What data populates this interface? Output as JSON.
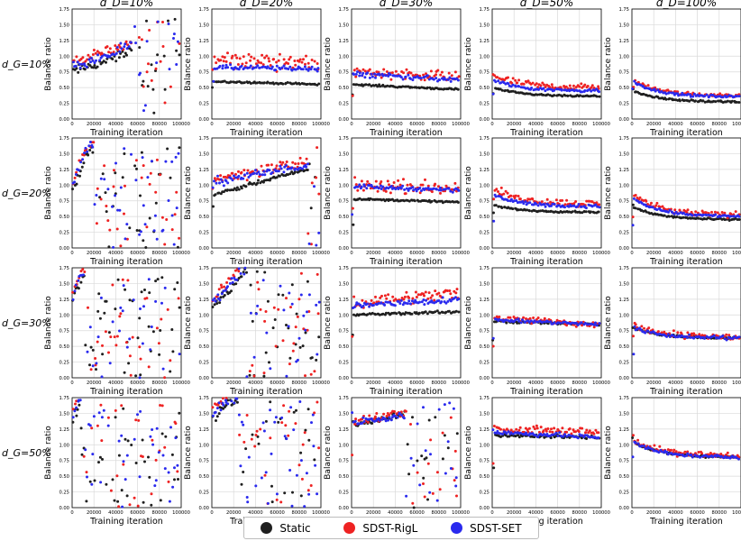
{
  "figure": {
    "col_titles": [
      "$d_D$=10%",
      "$d_D$=20%",
      "$d_D$=30%",
      "$d_D$=50%",
      "$d_D$=100%"
    ],
    "row_titles": [
      "$d_G$=10%",
      "$d_G$=20%",
      "$d_G$=30%",
      "$d_G$=50%"
    ],
    "col_title_text": [
      "d_D=10%",
      "d_D=20%",
      "d_D=30%",
      "d_D=50%",
      "d_D=100%"
    ],
    "row_title_text": [
      "d_G=10%",
      "d_G=20%",
      "d_G=30%",
      "d_G=50%"
    ],
    "xlabel": "Training iteration",
    "ylabel": "Balance ratio",
    "xlim": [
      0,
      100000
    ],
    "ylim": [
      0,
      1.75
    ],
    "xticks": [
      0,
      20000,
      40000,
      60000,
      80000,
      100000
    ],
    "yticks": [
      0.0,
      0.25,
      0.5,
      0.75,
      1.0,
      1.25,
      1.5,
      1.75
    ],
    "grid": true,
    "legend_placement": "bottom-center"
  },
  "legend": {
    "items": [
      {
        "label": "Static",
        "color": "#1f1f1f"
      },
      {
        "label": "SDST-RigL",
        "color": "#ee2222"
      },
      {
        "label": "SDST-SET",
        "color": "#2a2aee"
      }
    ]
  },
  "chart_data": {
    "type": "scatter",
    "series": [
      {
        "name": "Static",
        "color": "#1f1f1f"
      },
      {
        "name": "SDST-RigL",
        "color": "#ee2222"
      },
      {
        "name": "SDST-SET",
        "color": "#2a2aee"
      }
    ],
    "panels": [
      {
        "row": 0,
        "col": 0,
        "mode": "noisy",
        "trend": [
          0.75,
          0.85,
          0.95,
          1.1
        ],
        "chaos_after": 55000,
        "chaos_range": [
          0.05,
          1.6
        ]
      },
      {
        "row": 0,
        "col": 1,
        "mode": "stable",
        "levels": {
          "Static": [
            0.6,
            0.55
          ],
          "SDST-RigL": [
            0.95,
            0.9
          ],
          "SDST-SET": [
            0.82,
            0.8
          ]
        },
        "spread": {
          "Static": 0.02,
          "SDST-RigL": 0.2,
          "SDST-SET": 0.06
        }
      },
      {
        "row": 0,
        "col": 2,
        "mode": "stable",
        "levels": {
          "Static": [
            0.55,
            0.47
          ],
          "SDST-RigL": [
            0.75,
            0.68
          ],
          "SDST-SET": [
            0.72,
            0.62
          ]
        },
        "spread": {
          "Static": 0.02,
          "SDST-RigL": 0.12,
          "SDST-SET": 0.06
        }
      },
      {
        "row": 0,
        "col": 3,
        "mode": "decay",
        "levels": {
          "Static": [
            0.5,
            0.36
          ],
          "SDST-RigL": [
            0.7,
            0.5
          ],
          "SDST-SET": [
            0.62,
            0.45
          ]
        },
        "spread": {
          "Static": 0.02,
          "SDST-RigL": 0.08,
          "SDST-SET": 0.04
        }
      },
      {
        "row": 0,
        "col": 4,
        "mode": "decay",
        "levels": {
          "Static": [
            0.45,
            0.27
          ],
          "SDST-RigL": [
            0.62,
            0.37
          ],
          "SDST-SET": [
            0.6,
            0.35
          ]
        },
        "spread": {
          "Static": 0.02,
          "SDST-RigL": 0.05,
          "SDST-SET": 0.03
        }
      },
      {
        "row": 1,
        "col": 0,
        "mode": "noisy",
        "trend": [
          0.9,
          1.2,
          1.5,
          1.6
        ],
        "chaos_after": 20000,
        "chaos_range": [
          0.0,
          1.6
        ]
      },
      {
        "row": 1,
        "col": 1,
        "mode": "rise",
        "levels": {
          "Static": [
            0.85,
            1.3
          ],
          "SDST-RigL": [
            1.1,
            1.4
          ],
          "SDST-SET": [
            1.05,
            1.35
          ]
        },
        "spread": {
          "Static": 0.04,
          "SDST-RigL": 0.15,
          "SDST-SET": 0.1
        },
        "chaos_after": 88000
      },
      {
        "row": 1,
        "col": 2,
        "mode": "stable",
        "levels": {
          "Static": [
            0.78,
            0.73
          ],
          "SDST-RigL": [
            1.0,
            0.95
          ],
          "SDST-SET": [
            0.98,
            0.92
          ]
        },
        "spread": {
          "Static": 0.02,
          "SDST-RigL": 0.15,
          "SDST-SET": 0.05
        }
      },
      {
        "row": 1,
        "col": 3,
        "mode": "decay",
        "levels": {
          "Static": [
            0.68,
            0.57
          ],
          "SDST-RigL": [
            0.95,
            0.7
          ],
          "SDST-SET": [
            0.85,
            0.66
          ]
        },
        "spread": {
          "Static": 0.02,
          "SDST-RigL": 0.08,
          "SDST-SET": 0.04
        }
      },
      {
        "row": 1,
        "col": 4,
        "mode": "decay",
        "levels": {
          "Static": [
            0.65,
            0.45
          ],
          "SDST-RigL": [
            0.85,
            0.52
          ],
          "SDST-SET": [
            0.8,
            0.5
          ]
        },
        "spread": {
          "Static": 0.02,
          "SDST-RigL": 0.07,
          "SDST-SET": 0.03
        }
      },
      {
        "row": 2,
        "col": 0,
        "mode": "noisy",
        "trend": [
          1.2,
          1.4,
          1.55,
          1.6
        ],
        "chaos_after": 12000,
        "chaos_range": [
          0.0,
          1.6
        ]
      },
      {
        "row": 2,
        "col": 1,
        "mode": "noisy",
        "trend": [
          1.1,
          1.3,
          1.5,
          1.7
        ],
        "chaos_after": 32000,
        "chaos_range": [
          0.0,
          1.7
        ]
      },
      {
        "row": 2,
        "col": 2,
        "mode": "stable",
        "levels": {
          "Static": [
            1.0,
            1.05
          ],
          "SDST-RigL": [
            1.2,
            1.35
          ],
          "SDST-SET": [
            1.15,
            1.25
          ]
        },
        "spread": {
          "Static": 0.03,
          "SDST-RigL": 0.15,
          "SDST-SET": 0.08
        }
      },
      {
        "row": 2,
        "col": 3,
        "mode": "stable",
        "levels": {
          "Static": [
            0.9,
            0.85
          ],
          "SDST-RigL": [
            0.95,
            0.85
          ],
          "SDST-SET": [
            0.92,
            0.85
          ]
        },
        "spread": {
          "Static": 0.03,
          "SDST-RigL": 0.08,
          "SDST-SET": 0.04
        }
      },
      {
        "row": 2,
        "col": 4,
        "mode": "decay",
        "levels": {
          "Static": [
            0.8,
            0.63
          ],
          "SDST-RigL": [
            0.85,
            0.65
          ],
          "SDST-SET": [
            0.8,
            0.63
          ]
        },
        "spread": {
          "Static": 0.03,
          "SDST-RigL": 0.08,
          "SDST-SET": 0.04
        }
      },
      {
        "row": 3,
        "col": 0,
        "mode": "noisy",
        "trend": [
          1.35,
          1.5,
          1.6,
          1.65
        ],
        "chaos_after": 8000,
        "chaos_range": [
          0.0,
          1.65
        ]
      },
      {
        "row": 3,
        "col": 1,
        "mode": "noisy",
        "trend": [
          1.4,
          1.55,
          1.65,
          1.7
        ],
        "chaos_after": 25000,
        "chaos_range": [
          0.0,
          1.7
        ]
      },
      {
        "row": 3,
        "col": 2,
        "mode": "rise",
        "levels": {
          "Static": [
            1.3,
            1.7
          ],
          "SDST-RigL": [
            1.35,
            1.7
          ],
          "SDST-SET": [
            1.35,
            1.6
          ]
        },
        "spread": {
          "Static": 0.06,
          "SDST-RigL": 0.1,
          "SDST-SET": 0.08
        },
        "chaos_after": 50000
      },
      {
        "row": 3,
        "col": 3,
        "mode": "stable",
        "levels": {
          "Static": [
            1.15,
            1.12
          ],
          "SDST-RigL": [
            1.25,
            1.2
          ],
          "SDST-SET": [
            1.2,
            1.12
          ]
        },
        "spread": {
          "Static": 0.04,
          "SDST-RigL": 0.1,
          "SDST-SET": 0.05
        }
      },
      {
        "row": 3,
        "col": 4,
        "mode": "decay",
        "levels": {
          "Static": [
            1.05,
            0.8
          ],
          "SDST-RigL": [
            1.1,
            0.82
          ],
          "SDST-SET": [
            1.05,
            0.8
          ]
        },
        "spread": {
          "Static": 0.03,
          "SDST-RigL": 0.07,
          "SDST-SET": 0.04
        }
      }
    ]
  }
}
